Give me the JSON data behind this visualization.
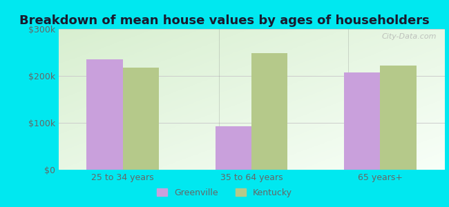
{
  "title": "Breakdown of mean house values by ages of householders",
  "categories": [
    "25 to 34 years",
    "35 to 64 years",
    "65 years+"
  ],
  "greenville_values": [
    235000,
    92000,
    207000
  ],
  "kentucky_values": [
    218000,
    248000,
    222000
  ],
  "greenville_color": "#c9a0dc",
  "kentucky_color": "#b5c98a",
  "ylim": [
    0,
    300000
  ],
  "yticks": [
    0,
    100000,
    200000,
    300000
  ],
  "ytick_labels": [
    "$0",
    "$100k",
    "$200k",
    "$300k"
  ],
  "bar_width": 0.28,
  "background_outer": "#00e8f0",
  "background_inner_topleft": "#d8efd0",
  "background_inner_bottomright": "#f8fff8",
  "title_fontsize": 13,
  "tick_fontsize": 9,
  "legend_labels": [
    "Greenville",
    "Kentucky"
  ],
  "watermark": "City-Data.com",
  "tick_color": "#666666",
  "grid_color": "#cccccc"
}
